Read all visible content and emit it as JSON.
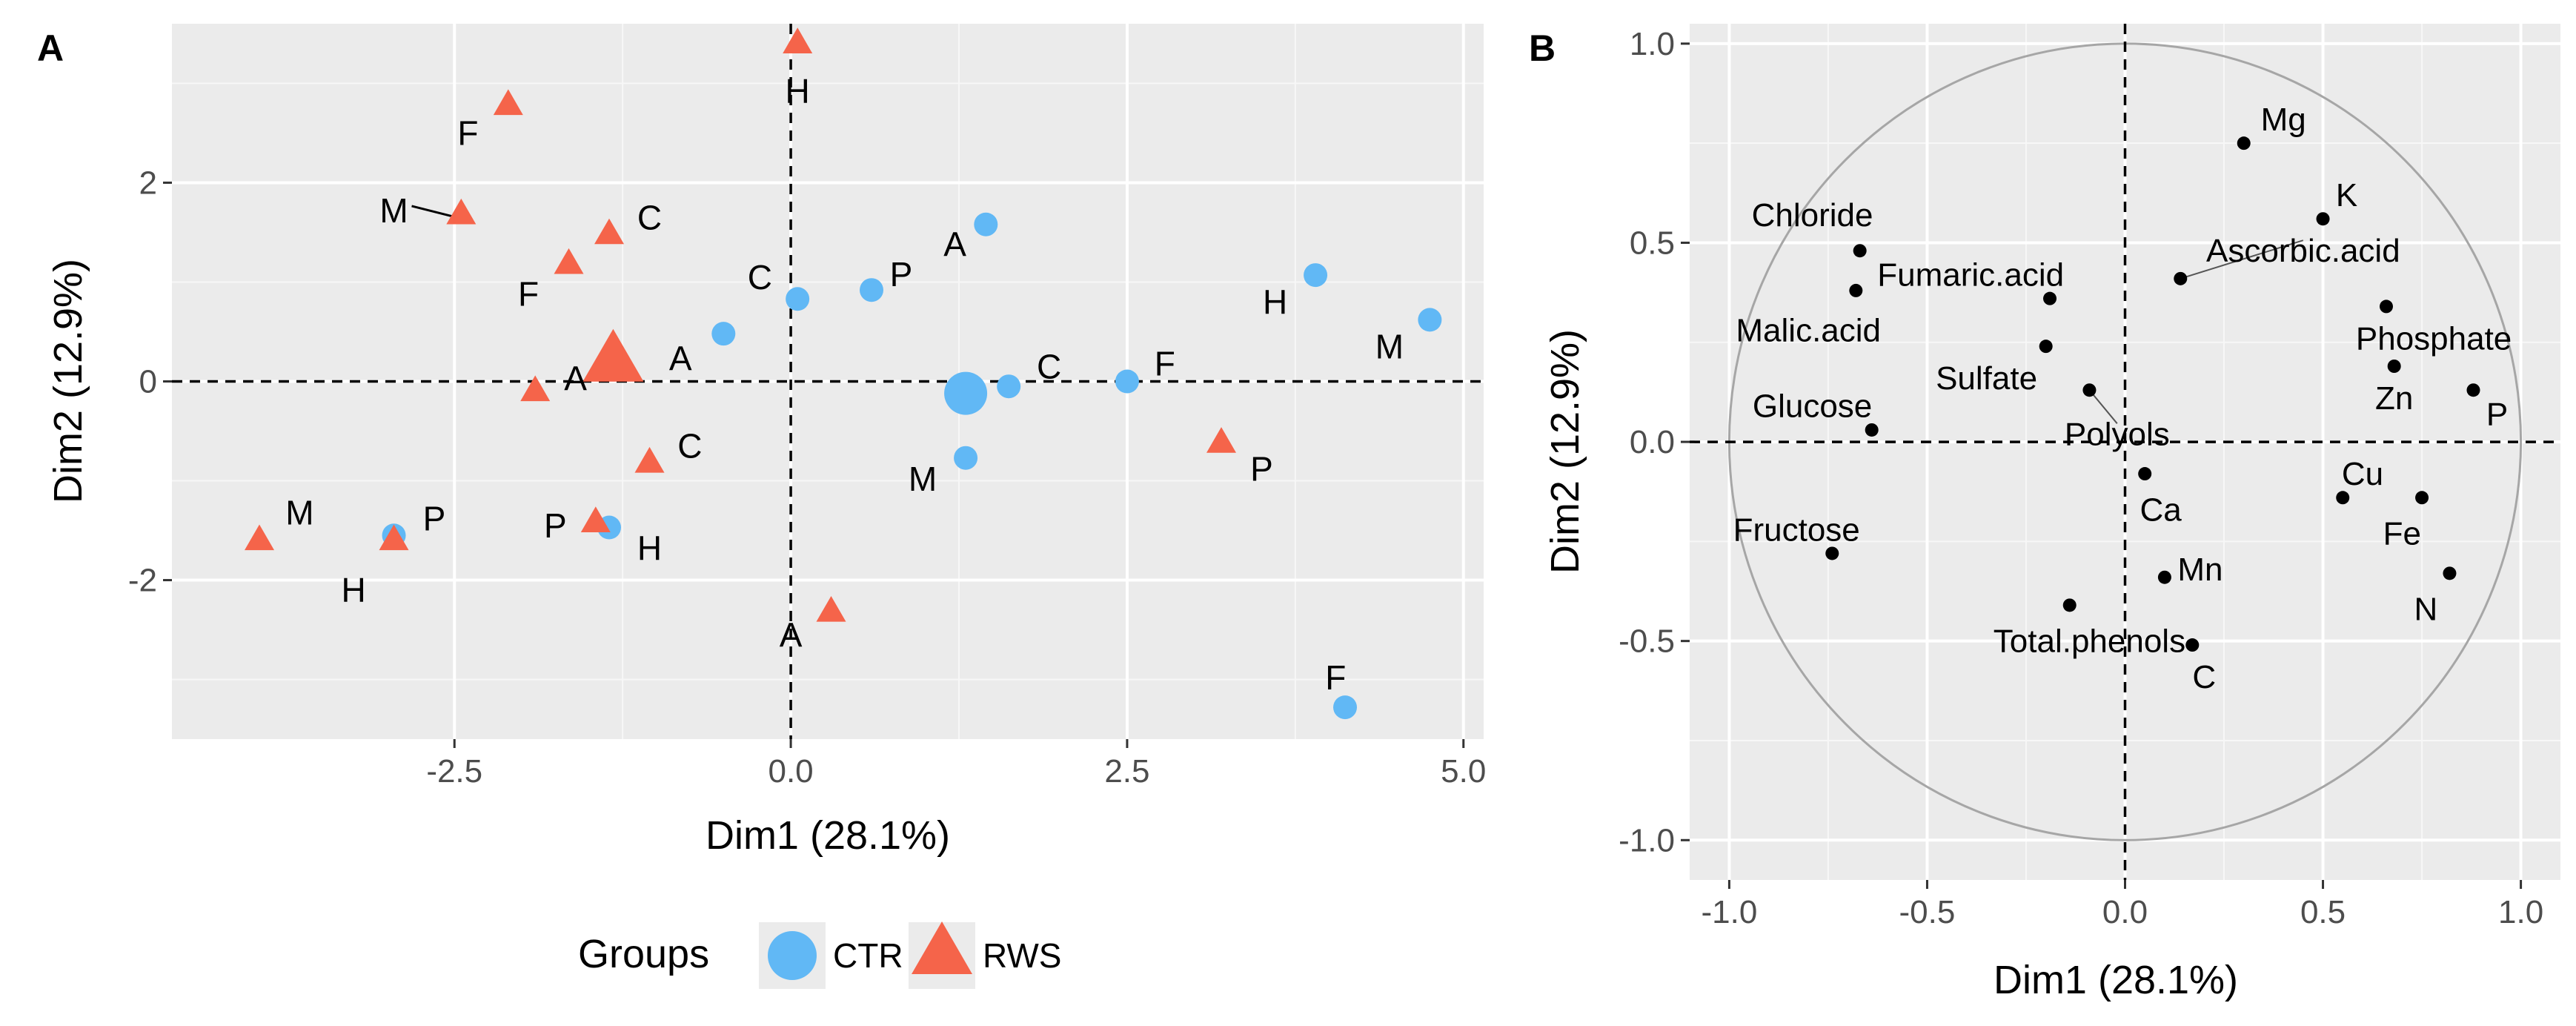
{
  "chart_data": [
    {
      "type": "scatter",
      "panel_label": "A",
      "xlabel": "Dim1 (28.1%)",
      "ylabel": "Dim2 (12.9%)",
      "xlim": [
        -4.6,
        5.15
      ],
      "ylim": [
        -3.6,
        3.6
      ],
      "xticks": [
        -2.5,
        0.0,
        2.5,
        5.0
      ],
      "xtick_labels": [
        "-2.5",
        "0.0",
        "2.5",
        "5.0"
      ],
      "yticks": [
        -2,
        0,
        2
      ],
      "ytick_labels": [
        "-2",
        "0",
        "2"
      ],
      "grid": true,
      "legend": {
        "title": "Groups",
        "placement": "bottom",
        "entries": [
          {
            "name": "CTR",
            "shape": "circle",
            "color": "#61B8F5"
          },
          {
            "name": "RWS",
            "shape": "triangle",
            "color": "#F5644A"
          }
        ]
      },
      "series": [
        {
          "name": "CTR",
          "shape": "circle",
          "color": "#61B8F5",
          "points": [
            {
              "x": 1.45,
              "y": 1.58,
              "label": "A",
              "lx": 1.22,
              "ly": 1.38
            },
            {
              "x": 0.05,
              "y": 0.83,
              "label": "C",
              "lx": -0.23,
              "ly": 1.05
            },
            {
              "x": 0.6,
              "y": 0.92,
              "label": "P",
              "lx": 0.82,
              "ly": 1.08
            },
            {
              "x": 3.9,
              "y": 1.07,
              "label": "H",
              "lx": 3.6,
              "ly": 0.8
            },
            {
              "x": 4.75,
              "y": 0.62,
              "label": "M",
              "lx": 4.45,
              "ly": 0.35
            },
            {
              "x": -0.5,
              "y": 0.48,
              "label": null
            },
            {
              "x": 1.62,
              "y": -0.05,
              "label": "C",
              "lx": 1.92,
              "ly": 0.15
            },
            {
              "x": 2.5,
              "y": 0.0,
              "label": "F",
              "lx": 2.78,
              "ly": 0.18
            },
            {
              "x": 1.3,
              "y": -0.77,
              "label": "M",
              "lx": 0.98,
              "ly": -0.98
            },
            {
              "x": -2.95,
              "y": -1.55,
              "label": "P",
              "lx": -2.65,
              "ly": -1.38
            },
            {
              "x": -1.35,
              "y": -1.47,
              "label": "H",
              "lx": -1.05,
              "ly": -1.68
            },
            {
              "x": 4.12,
              "y": -3.28,
              "label": "F",
              "lx": 4.05,
              "ly": -2.98
            }
          ],
          "centroid": {
            "x": 1.3,
            "y": -0.12
          }
        },
        {
          "name": "RWS",
          "shape": "triangle",
          "color": "#F5644A",
          "points": [
            {
              "x": 0.05,
              "y": 3.4,
              "label": "H",
              "lx": 0.05,
              "ly": 2.92
            },
            {
              "x": -2.1,
              "y": 2.78,
              "label": "F",
              "lx": -2.4,
              "ly": 2.5
            },
            {
              "x": -2.45,
              "y": 1.68,
              "label": "M",
              "lx": -2.95,
              "ly": 1.72,
              "leader": true
            },
            {
              "x": -1.35,
              "y": 1.48,
              "label": "C",
              "lx": -1.05,
              "ly": 1.65
            },
            {
              "x": -1.65,
              "y": 1.18,
              "label": "F",
              "lx": -1.95,
              "ly": 0.88
            },
            {
              "x": -1.9,
              "y": -0.1,
              "label": "A",
              "lx": -1.6,
              "ly": 0.03
            },
            {
              "x": -1.05,
              "y": -0.82,
              "label": "C",
              "lx": -0.75,
              "ly": -0.65
            },
            {
              "x": -1.45,
              "y": -1.42,
              "label": "P",
              "lx": -1.75,
              "ly": -1.45
            },
            {
              "x": 3.2,
              "y": -0.62,
              "label": "P",
              "lx": 3.5,
              "ly": -0.88
            },
            {
              "x": 0.3,
              "y": -2.32,
              "label": "A",
              "lx": 0.0,
              "ly": -2.55
            },
            {
              "x": -3.95,
              "y": -1.6,
              "label": "M",
              "lx": -3.65,
              "ly": -1.32
            },
            {
              "x": -2.95,
              "y": -1.6,
              "label": "H",
              "lx": -3.25,
              "ly": -2.1
            }
          ],
          "centroid": {
            "x": -1.32,
            "y": 0.2,
            "label": "A",
            "lx": -0.82,
            "ly": 0.23
          }
        }
      ]
    },
    {
      "type": "scatter",
      "panel_label": "B",
      "xlabel": "Dim1 (28.1%)",
      "ylabel": "Dim2 (12.9%)",
      "xlim": [
        -1.1,
        1.1
      ],
      "ylim": [
        -1.1,
        1.05
      ],
      "xticks": [
        -1.0,
        -0.5,
        0.0,
        0.5,
        1.0
      ],
      "xtick_labels": [
        "-1.0",
        "-0.5",
        "0.0",
        "0.5",
        "1.0"
      ],
      "yticks": [
        -1.0,
        -0.5,
        0.0,
        0.5,
        1.0
      ],
      "ytick_labels": [
        "-1.0",
        "-0.5",
        "0.0",
        "0.5",
        "1.0"
      ],
      "grid": true,
      "unit_circle": true,
      "series": [
        {
          "name": "variables",
          "color": "#000000",
          "points": [
            {
              "x": 0.3,
              "y": 0.75,
              "label": "Mg",
              "lx": 0.4,
              "ly": 0.81
            },
            {
              "x": 0.5,
              "y": 0.56,
              "label": "K",
              "lx": 0.56,
              "ly": 0.62
            },
            {
              "x": -0.67,
              "y": 0.48,
              "label": "Chloride",
              "lx": -0.79,
              "ly": 0.57
            },
            {
              "x": 0.14,
              "y": 0.41,
              "label": "Ascorbic.acid",
              "lx": 0.45,
              "ly": 0.48,
              "leader": true
            },
            {
              "x": -0.19,
              "y": 0.36,
              "label": "Fumaric.acid",
              "lx": -0.39,
              "ly": 0.42
            },
            {
              "x": -0.68,
              "y": 0.38,
              "label": "Malic.acid",
              "lx": -0.8,
              "ly": 0.28
            },
            {
              "x": 0.66,
              "y": 0.34,
              "label": "Phosphate",
              "lx": 0.78,
              "ly": 0.26
            },
            {
              "x": -0.2,
              "y": 0.24,
              "label": "Sulfate",
              "lx": -0.35,
              "ly": 0.16
            },
            {
              "x": 0.68,
              "y": 0.19,
              "label": "Zn",
              "lx": 0.68,
              "ly": 0.11
            },
            {
              "x": 0.88,
              "y": 0.13,
              "label": "P",
              "lx": 0.94,
              "ly": 0.07
            },
            {
              "x": -0.09,
              "y": 0.13,
              "label": "Polyols",
              "lx": -0.02,
              "ly": 0.02,
              "leader": true
            },
            {
              "x": -0.64,
              "y": 0.03,
              "label": "Glucose",
              "lx": -0.79,
              "ly": 0.09
            },
            {
              "x": 0.05,
              "y": -0.08,
              "label": "Ca",
              "lx": 0.09,
              "ly": -0.17
            },
            {
              "x": 0.55,
              "y": -0.14,
              "label": "Cu",
              "lx": 0.6,
              "ly": -0.08
            },
            {
              "x": 0.75,
              "y": -0.14,
              "label": "Fe",
              "lx": 0.7,
              "ly": -0.23
            },
            {
              "x": -0.74,
              "y": -0.28,
              "label": "Fructose",
              "lx": -0.83,
              "ly": -0.22
            },
            {
              "x": 0.1,
              "y": -0.34,
              "label": "Mn",
              "lx": 0.19,
              "ly": -0.32
            },
            {
              "x": 0.82,
              "y": -0.33,
              "label": "N",
              "lx": 0.76,
              "ly": -0.42
            },
            {
              "x": -0.14,
              "y": -0.41,
              "label": "Total.phenols",
              "lx": -0.09,
              "ly": -0.5
            },
            {
              "x": 0.17,
              "y": -0.51,
              "label": "C",
              "lx": 0.2,
              "ly": -0.59
            }
          ]
        }
      ]
    }
  ]
}
